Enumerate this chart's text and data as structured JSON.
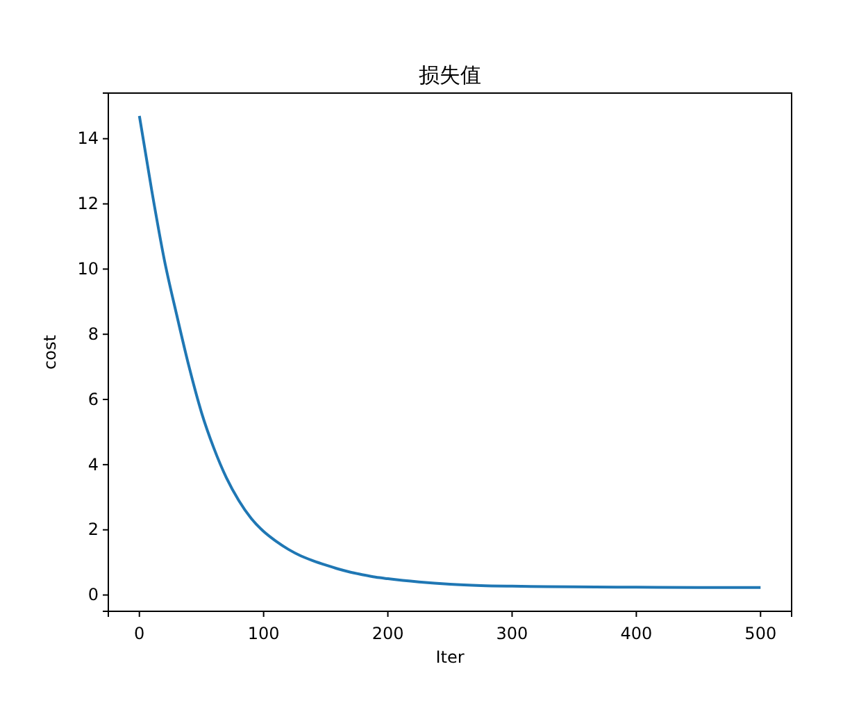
{
  "chart_data": {
    "type": "line",
    "title": "损失值",
    "xlabel": "Iter",
    "ylabel": "cost",
    "x": [
      0,
      10,
      20,
      30,
      40,
      50,
      60,
      70,
      80,
      90,
      100,
      110,
      120,
      130,
      140,
      150,
      160,
      170,
      180,
      190,
      200,
      225,
      250,
      275,
      300,
      350,
      400,
      450,
      500
    ],
    "series": [
      {
        "color": "#1f77b4",
        "values": [
          14.7,
          12.4,
          10.3,
          8.6,
          7.0,
          5.6,
          4.5,
          3.6,
          2.9,
          2.35,
          1.95,
          1.65,
          1.4,
          1.2,
          1.05,
          0.92,
          0.8,
          0.7,
          0.62,
          0.55,
          0.5,
          0.4,
          0.33,
          0.29,
          0.27,
          0.25,
          0.24,
          0.23,
          0.23
        ]
      }
    ],
    "xlim": [
      -25,
      525
    ],
    "ylim": [
      -0.5,
      15.4
    ],
    "xticks": [
      0,
      100,
      200,
      300,
      400,
      500
    ],
    "yticks": [
      0,
      2,
      4,
      6,
      8,
      10,
      12,
      14
    ],
    "marker": "none",
    "line_style": "solid"
  }
}
